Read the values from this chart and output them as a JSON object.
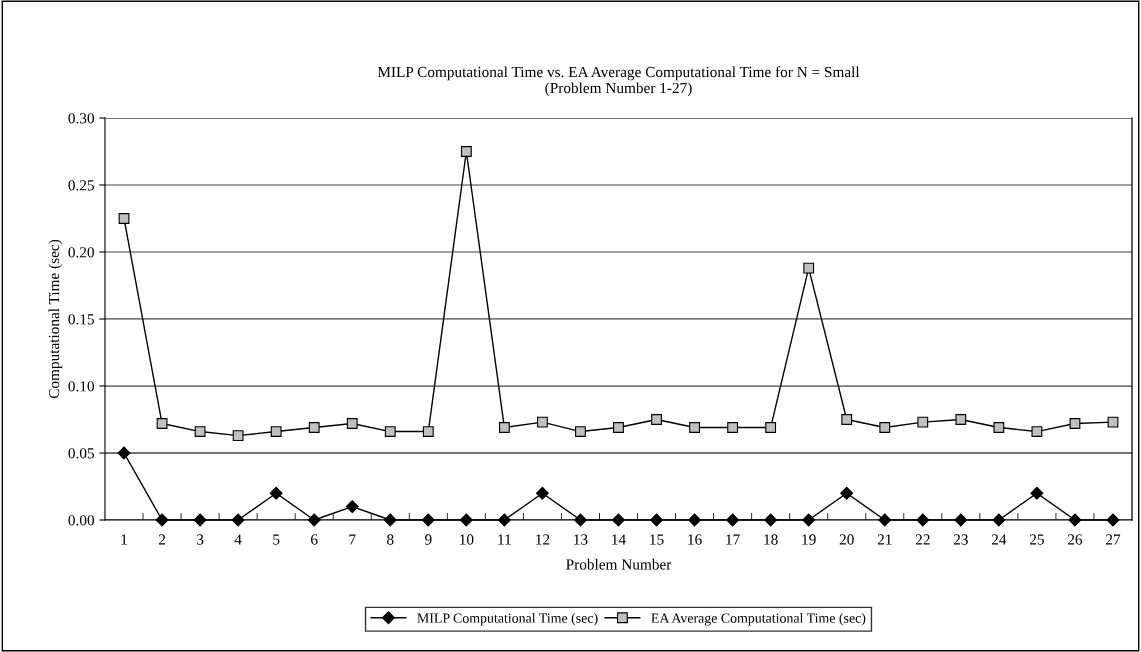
{
  "chart_data": {
    "type": "line",
    "title": "MILP Computational Time vs. EA Average Computational Time for N = Small\n(Problem Number 1-27)",
    "xlabel": "Problem Number",
    "ylabel": "Computational Time (sec)",
    "categories": [
      "1",
      "2",
      "3",
      "4",
      "5",
      "6",
      "7",
      "8",
      "9",
      "10",
      "11",
      "12",
      "13",
      "14",
      "15",
      "16",
      "17",
      "18",
      "19",
      "20",
      "21",
      "22",
      "23",
      "24",
      "25",
      "26",
      "27"
    ],
    "series": [
      {
        "name": "MILP Computational Time (sec)",
        "color": "#000000",
        "marker": "diamond",
        "values": [
          0.05,
          0,
          0,
          0,
          0.02,
          0,
          0.01,
          0,
          0,
          0,
          0,
          0.02,
          0,
          0,
          0,
          0,
          0,
          0,
          0,
          0.02,
          0,
          0,
          0,
          0,
          0.02,
          0,
          0
        ]
      },
      {
        "name": "EA Average Computational Time (sec)",
        "color": "#c0c0c0",
        "marker": "square",
        "values": [
          0.225,
          0.072,
          0.066,
          0.063,
          0.066,
          0.069,
          0.072,
          0.066,
          0.066,
          0.275,
          0.069,
          0.073,
          0.066,
          0.069,
          0.075,
          0.069,
          0.069,
          0.069,
          0.188,
          0.075,
          0.069,
          0.073,
          0.075,
          0.069,
          0.066,
          0.072,
          0.073
        ]
      }
    ],
    "ylim": [
      0,
      0.3
    ],
    "yticks": [
      {
        "value": 0,
        "label": "0.00"
      },
      {
        "value": 0.05,
        "label": "0.05"
      },
      {
        "value": 0.1,
        "label": "0.10"
      },
      {
        "value": 0.15,
        "label": "0.15"
      },
      {
        "value": 0.2,
        "label": "0.20"
      },
      {
        "value": 0.25,
        "label": "0.25"
      },
      {
        "value": 0.3,
        "label": "0.30"
      }
    ],
    "grid": "y",
    "legend": "bottom",
    "line_style": "solid"
  }
}
